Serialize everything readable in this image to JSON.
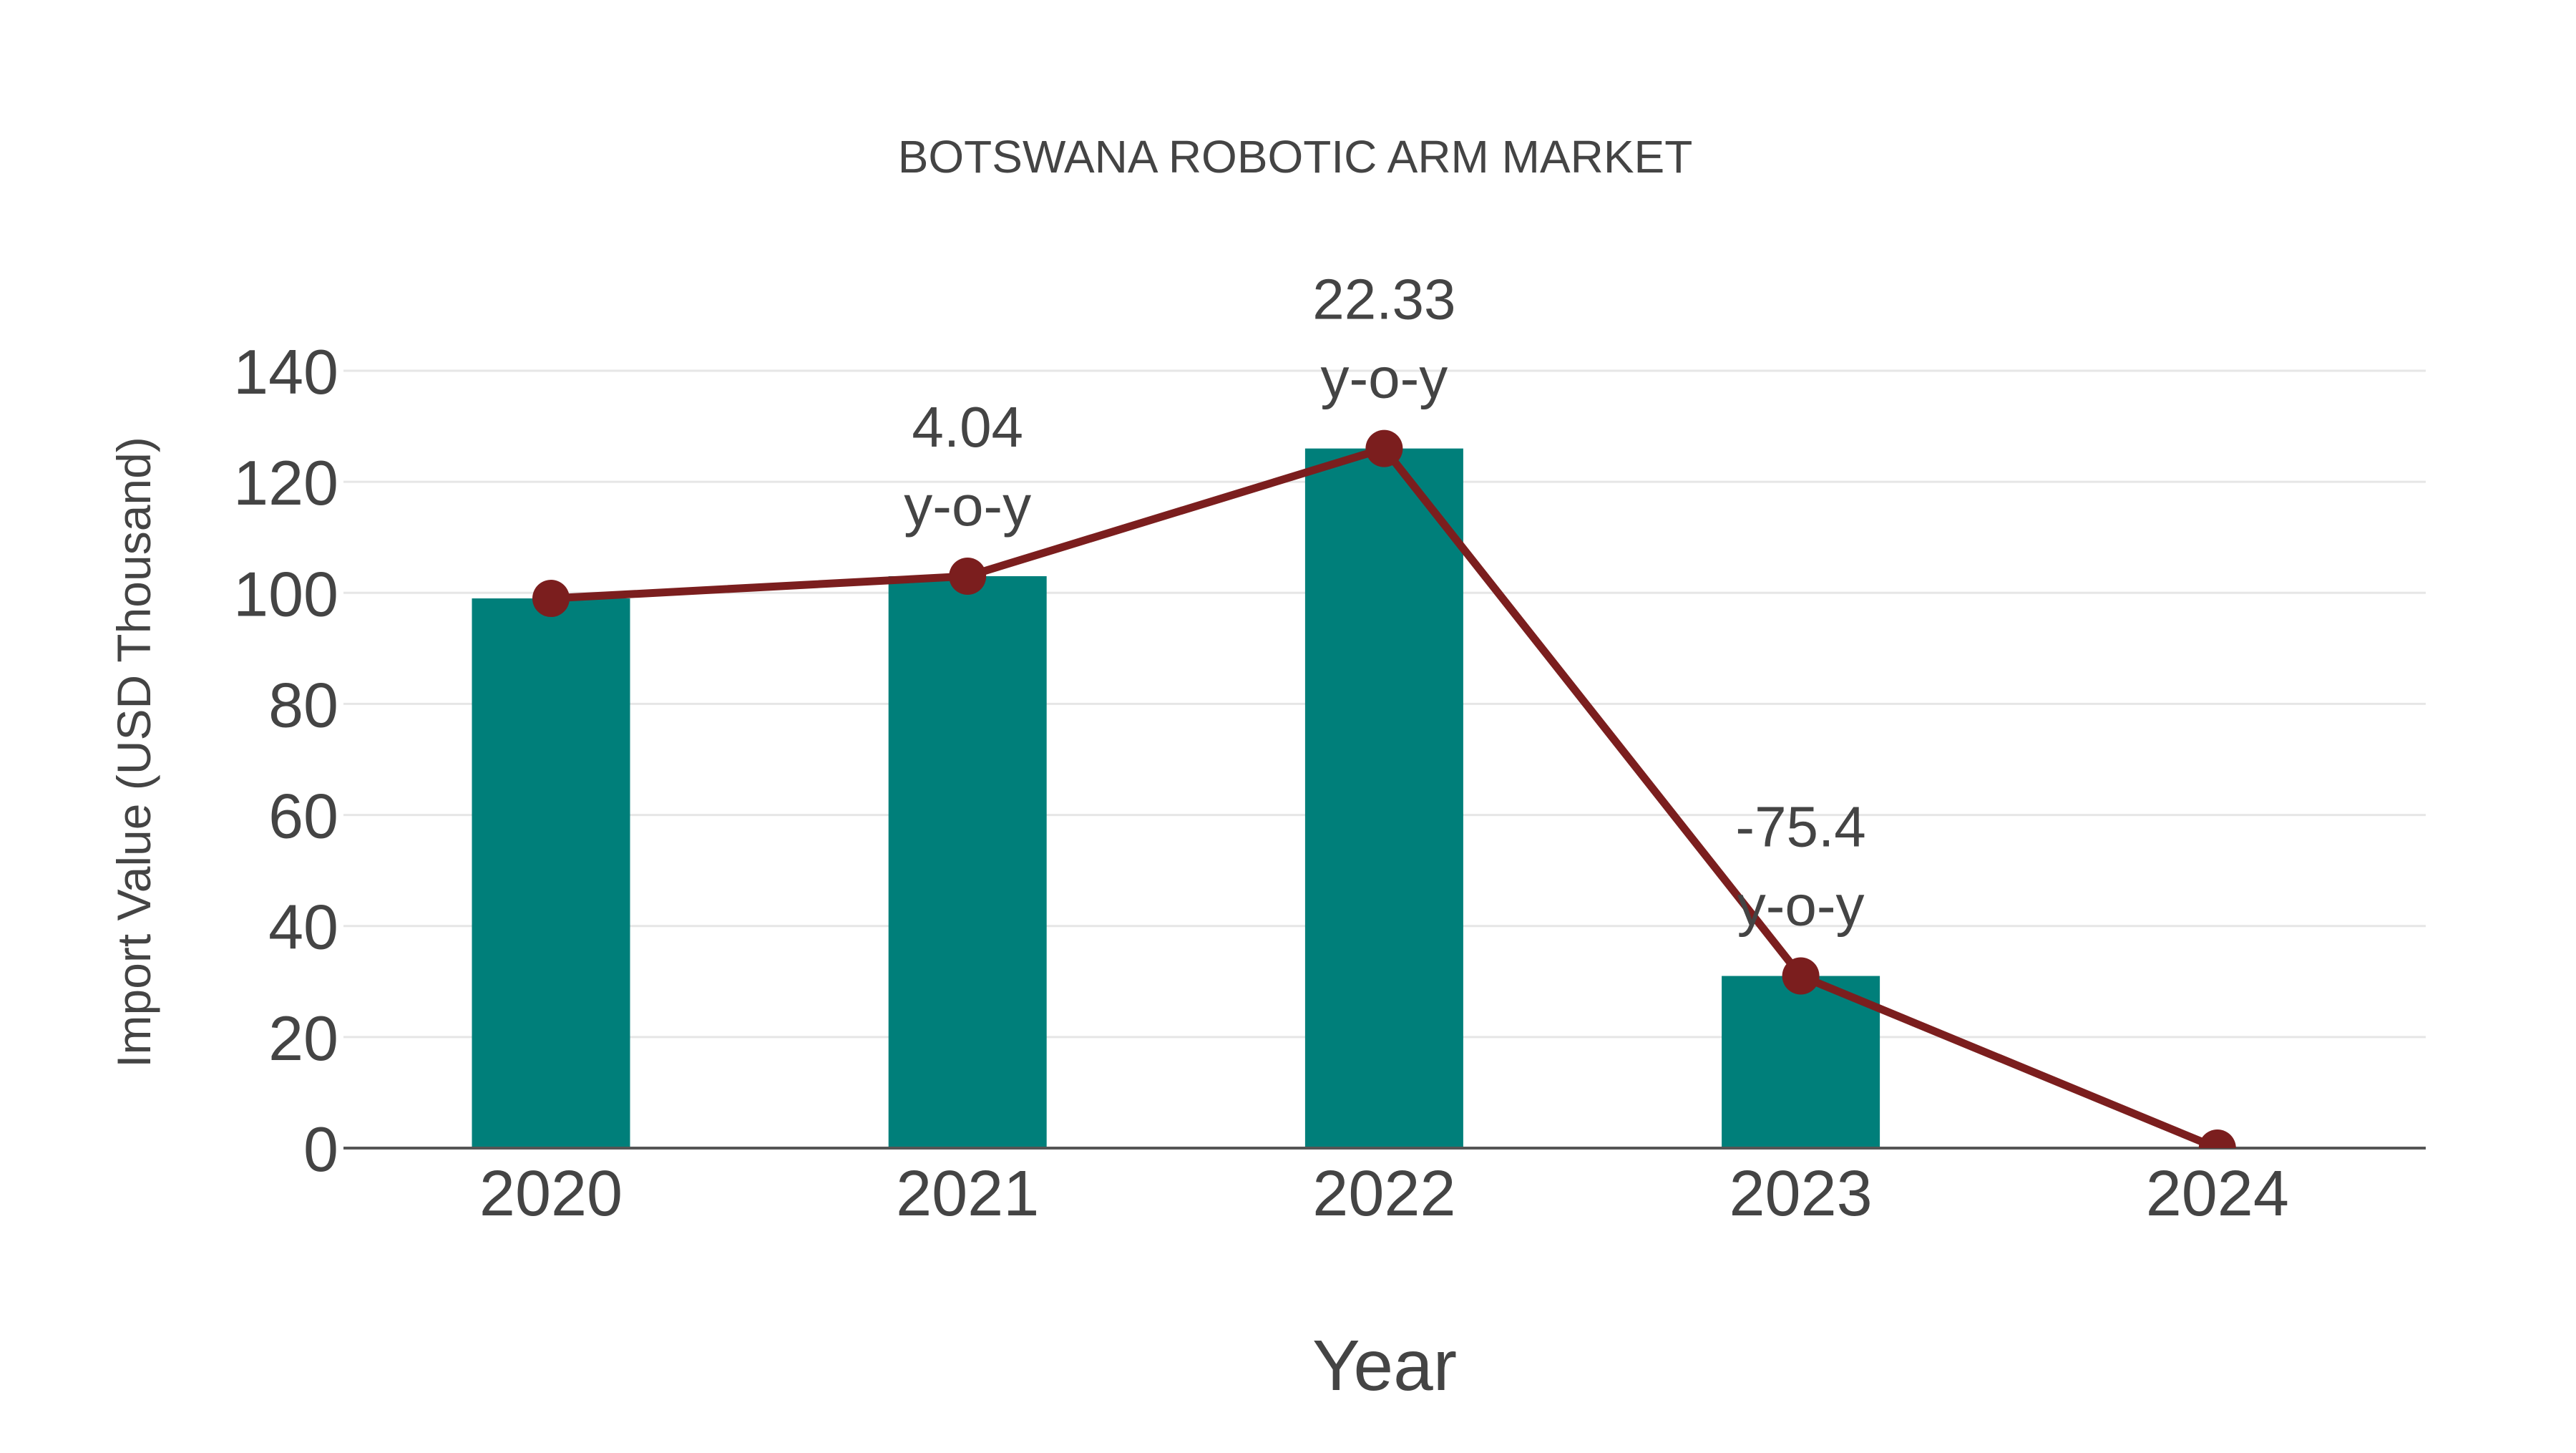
{
  "chart_data": {
    "type": "bar",
    "title": "BOTSWANA ROBOTIC ARM MARKET",
    "xlabel": "Year",
    "ylabel": "Import Value (USD Thousand)",
    "categories": [
      "2020",
      "2021",
      "2022",
      "2023",
      "2024"
    ],
    "series": [
      {
        "name": "Import Value",
        "type": "bar",
        "color": "#007f7a",
        "values": [
          99,
          103,
          126,
          31,
          0
        ]
      },
      {
        "name": "Import Value Trend",
        "type": "line",
        "color": "#7b1e1e",
        "values": [
          99,
          103,
          126,
          31,
          0
        ],
        "markers": true
      }
    ],
    "annotations": [
      {
        "category": "2021",
        "value_text": "4.04",
        "suffix": "y-o-y"
      },
      {
        "category": "2022",
        "value_text": "22.33",
        "suffix": "y-o-y"
      },
      {
        "category": "2023",
        "value_text": "-75.4",
        "suffix": "y-o-y"
      }
    ],
    "yticks": [
      0,
      20,
      40,
      60,
      80,
      100,
      120,
      140
    ],
    "ylim": [
      0,
      140
    ],
    "grid": {
      "horizontal": true,
      "vertical": false,
      "color": "#e6e6e6"
    },
    "legend": {
      "visible": false
    }
  }
}
